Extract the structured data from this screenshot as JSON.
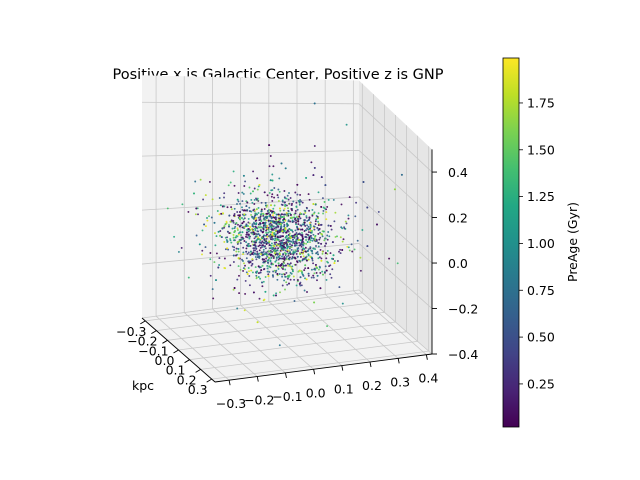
{
  "chart_data": {
    "type": "scatter",
    "title": "Positive x is Galactic Center, Positive z is GNP",
    "xlabel": "kpc",
    "ylabel": "",
    "zlabel": "",
    "x_ticks": [
      "−0.3",
      "−0.2",
      "−0.1",
      "0.0",
      "0.1",
      "0.2",
      "0.3"
    ],
    "y_ticks": [
      "−0.3",
      "−0.2",
      "−0.1",
      "0.0",
      "0.1",
      "0.2",
      "0.3",
      "0.4"
    ],
    "z_ticks": [
      "−0.4",
      "−0.2",
      "0.0",
      "0.2",
      "0.4"
    ],
    "xlim": [
      -0.33,
      0.33
    ],
    "ylim": [
      -0.35,
      0.42
    ],
    "zlim": [
      -0.4,
      0.5
    ],
    "grid": true,
    "colorbar": {
      "label": "PreAge (Gyr)",
      "ticks": [
        "0.25",
        "0.50",
        "0.75",
        "1.00",
        "1.25",
        "1.50",
        "1.75"
      ],
      "range": [
        0.02,
        1.99
      ],
      "colormap": "viridis"
    },
    "marker_size": "small",
    "approx_point_count": 2000,
    "distribution": "dense roughly spherical cluster centred near the origin, scatter standard deviation about 0.1 kpc per axis, sparser outliers extending to about ±0.3 kpc; colours mixed across the full PreAge range with purple (young) points most common"
  }
}
